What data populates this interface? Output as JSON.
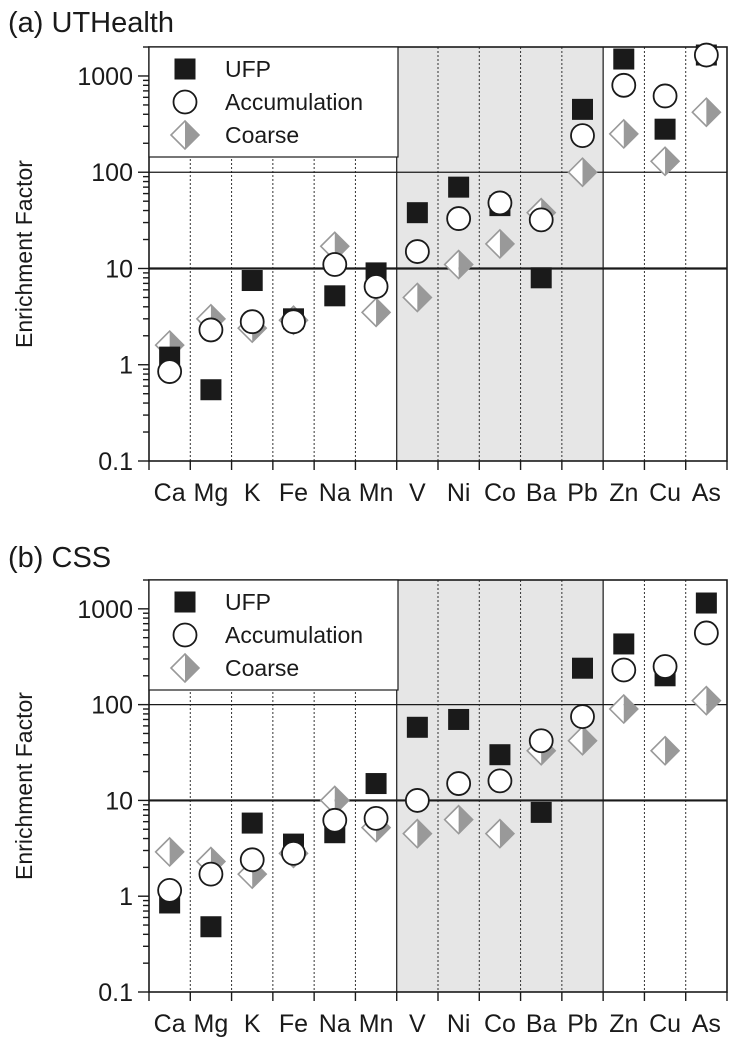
{
  "chart_data": [
    {
      "type": "scatter",
      "title": "(a) UTHealth",
      "ylabel": "Enrichment Factor",
      "yscale": "log",
      "ylim": [
        0.1,
        2000
      ],
      "yticks": [
        "0.1",
        "1",
        "10",
        "100",
        "1000"
      ],
      "categories": [
        "Ca",
        "Mg",
        "K",
        "Fe",
        "Na",
        "Mn",
        "V",
        "Ni",
        "Co",
        "Ba",
        "Pb",
        "Zn",
        "Cu",
        "As"
      ],
      "shaded_categories": [
        "V",
        "Ni",
        "Co",
        "Ba",
        "Pb"
      ],
      "reference_lines": [
        10,
        100
      ],
      "legend_position": "top-left",
      "series": [
        {
          "name": "UFP",
          "marker": "square",
          "color": "#1a1a1a",
          "values": [
            1.2,
            0.55,
            7.5,
            3.0,
            5.2,
            9.0,
            38,
            70,
            45,
            8.0,
            450,
            1500,
            280,
            1650
          ]
        },
        {
          "name": "Accumulation",
          "marker": "circle",
          "color": "#1a1a1a",
          "values": [
            0.85,
            2.3,
            2.8,
            2.8,
            11,
            6.5,
            15,
            33,
            48,
            32,
            240,
            800,
            620,
            1650
          ]
        },
        {
          "name": "Coarse",
          "marker": "diamond",
          "color": "#999999",
          "values": [
            1.6,
            3.0,
            2.4,
            2.9,
            17,
            3.5,
            5.0,
            11,
            18,
            38,
            100,
            250,
            130,
            420
          ]
        }
      ]
    },
    {
      "type": "scatter",
      "title": "(b) CSS",
      "ylabel": "Enrichment Factor",
      "yscale": "log",
      "ylim": [
        0.1,
        2000
      ],
      "yticks": [
        "0.1",
        "1",
        "10",
        "100",
        "1000"
      ],
      "categories": [
        "Ca",
        "Mg",
        "K",
        "Fe",
        "Na",
        "Mn",
        "V",
        "Ni",
        "Co",
        "Ba",
        "Pb",
        "Zn",
        "Cu",
        "As"
      ],
      "shaded_categories": [
        "V",
        "Ni",
        "Co",
        "Ba",
        "Pb"
      ],
      "reference_lines": [
        10,
        100
      ],
      "legend_position": "top-left",
      "series": [
        {
          "name": "UFP",
          "marker": "square",
          "color": "#1a1a1a",
          "values": [
            0.85,
            0.48,
            5.8,
            3.5,
            4.6,
            15,
            58,
            70,
            30,
            7.5,
            240,
            430,
            200,
            1150
          ]
        },
        {
          "name": "Accumulation",
          "marker": "circle",
          "color": "#1a1a1a",
          "values": [
            1.15,
            1.7,
            2.4,
            2.8,
            6.2,
            6.5,
            10,
            15,
            16,
            42,
            75,
            230,
            250,
            560
          ]
        },
        {
          "name": "Coarse",
          "marker": "diamond",
          "color": "#999999",
          "values": [
            2.9,
            2.3,
            1.7,
            2.8,
            10,
            5.2,
            4.5,
            6.3,
            4.5,
            33,
            42,
            90,
            33,
            110
          ]
        }
      ]
    }
  ]
}
